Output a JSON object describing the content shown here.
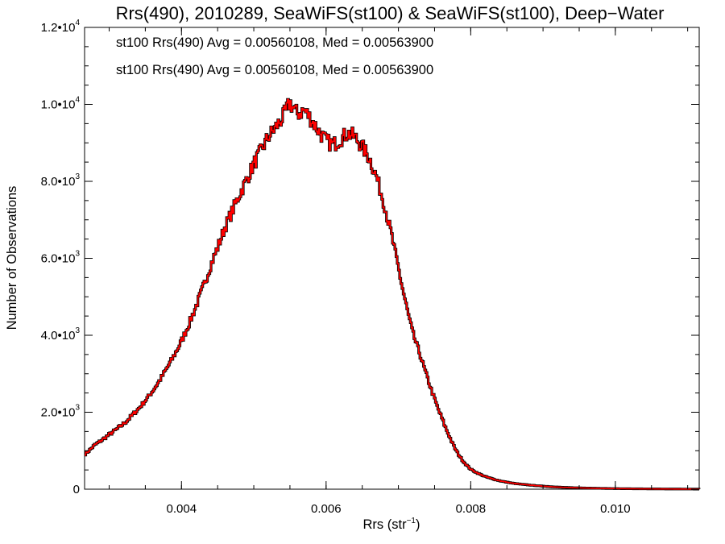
{
  "chart_data": {
    "type": "histogram",
    "title": "Rrs(490), 2010289, SeaWiFS(st100) & SeaWiFS(st100), Deep−Water",
    "xlabel": {
      "base": "Rrs (str",
      "sup": "−1",
      "tail": ")"
    },
    "ylabel": "Number of Observations",
    "xlim": [
      0.00266,
      0.01116
    ],
    "ylim": [
      0,
      12000
    ],
    "x_ticks": [
      {
        "value": 0.004,
        "label": "0.004"
      },
      {
        "value": 0.006,
        "label": "0.006"
      },
      {
        "value": 0.008,
        "label": "0.008"
      },
      {
        "value": 0.01,
        "label": "0.010"
      }
    ],
    "x_minor_step": 0.0005,
    "y_ticks": [
      {
        "value": 0,
        "mantissa": "0",
        "exp": ""
      },
      {
        "value": 2000,
        "mantissa": "2.0•10",
        "exp": "3"
      },
      {
        "value": 4000,
        "mantissa": "4.0•10",
        "exp": "3"
      },
      {
        "value": 6000,
        "mantissa": "6.0•10",
        "exp": "3"
      },
      {
        "value": 8000,
        "mantissa": "8.0•10",
        "exp": "3"
      },
      {
        "value": 10000,
        "mantissa": "1.0•10",
        "exp": "4"
      },
      {
        "value": 12000,
        "mantissa": "1.2•10",
        "exp": "4"
      }
    ],
    "y_minor_step": 500,
    "legend": [
      {
        "text": "st100 Rrs(490) Avg = 0.00560108, Med = 0.00563900",
        "color": "#000000"
      },
      {
        "text": "st100 Rrs(490) Avg = 0.00560108, Med = 0.00563900",
        "color": "#ff0000"
      }
    ],
    "legend_position": "top-left",
    "series": [
      {
        "color_back": "#000000",
        "color_front": "#ff0000",
        "points": [
          [
            0.00266,
            900
          ],
          [
            0.0028,
            1150
          ],
          [
            0.003,
            1420
          ],
          [
            0.0032,
            1700
          ],
          [
            0.0034,
            2080
          ],
          [
            0.0036,
            2550
          ],
          [
            0.0038,
            3150
          ],
          [
            0.004,
            3850
          ],
          [
            0.0042,
            4750
          ],
          [
            0.0044,
            5800
          ],
          [
            0.0046,
            6800
          ],
          [
            0.0048,
            7650
          ],
          [
            0.005,
            8450
          ],
          [
            0.0052,
            9150
          ],
          [
            0.0054,
            9650
          ],
          [
            0.0055,
            10050
          ],
          [
            0.0056,
            9750
          ],
          [
            0.0057,
            9850
          ],
          [
            0.0058,
            9600
          ],
          [
            0.0059,
            9300
          ],
          [
            0.006,
            9050
          ],
          [
            0.0061,
            8950
          ],
          [
            0.0062,
            9100
          ],
          [
            0.0063,
            9250
          ],
          [
            0.0064,
            9150
          ],
          [
            0.0065,
            8900
          ],
          [
            0.0066,
            8600
          ],
          [
            0.0067,
            8100
          ],
          [
            0.0068,
            7450
          ],
          [
            0.0069,
            6650
          ],
          [
            0.007,
            5750
          ],
          [
            0.0071,
            4850
          ],
          [
            0.0072,
            4050
          ],
          [
            0.0073,
            3500
          ],
          [
            0.0074,
            2900
          ],
          [
            0.0075,
            2350
          ],
          [
            0.0076,
            1850
          ],
          [
            0.0077,
            1400
          ],
          [
            0.0078,
            1000
          ],
          [
            0.0079,
            720
          ],
          [
            0.008,
            520
          ],
          [
            0.0082,
            330
          ],
          [
            0.0084,
            220
          ],
          [
            0.0086,
            150
          ],
          [
            0.0088,
            110
          ],
          [
            0.009,
            80
          ],
          [
            0.0092,
            55
          ],
          [
            0.0094,
            40
          ],
          [
            0.0096,
            30
          ],
          [
            0.0098,
            22
          ],
          [
            0.01,
            16
          ],
          [
            0.0102,
            12
          ],
          [
            0.0104,
            9
          ],
          [
            0.0106,
            7
          ],
          [
            0.0108,
            5
          ],
          [
            0.011,
            4
          ],
          [
            0.01116,
            3
          ]
        ]
      }
    ]
  }
}
